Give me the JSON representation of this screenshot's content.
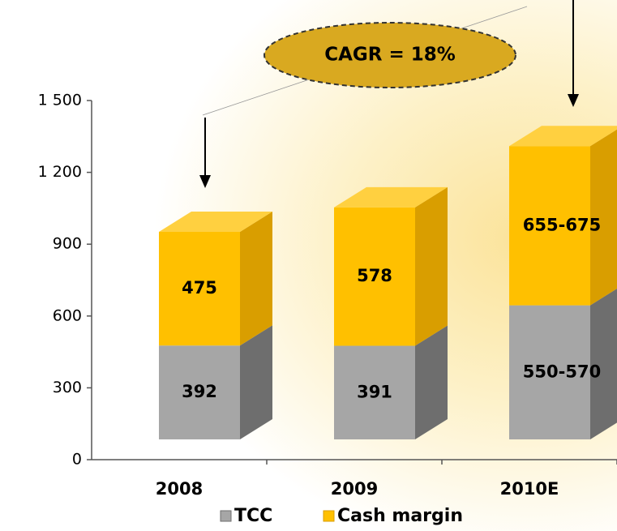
{
  "chart_data": {
    "type": "stacked_bar_3d",
    "annotation": "CAGR = 18%",
    "categories": [
      "2008",
      "2009",
      "2010E"
    ],
    "series": [
      {
        "name": "TCC",
        "color": "#a6a6a6",
        "values": [
          392,
          391,
          560
        ],
        "value_labels": [
          "392",
          "391",
          "550-570"
        ]
      },
      {
        "name": "Cash margin",
        "color": "#ffc000",
        "values": [
          475,
          578,
          665
        ],
        "value_labels": [
          "475",
          "578",
          "655-675"
        ]
      }
    ],
    "ylim": [
      0,
      1500
    ],
    "yticks": [
      0,
      300,
      600,
      900,
      {
        "value": 1200,
        "label": "1 200"
      },
      {
        "value": 1500,
        "label": "1 500"
      }
    ]
  }
}
